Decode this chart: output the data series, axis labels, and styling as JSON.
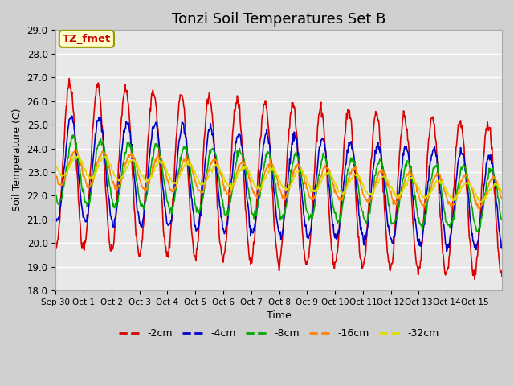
{
  "title": "Tonzi Soil Temperatures Set B",
  "xlabel": "Time",
  "ylabel": "Soil Temperature (C)",
  "ylim": [
    18.0,
    29.0
  ],
  "yticks": [
    18.0,
    19.0,
    20.0,
    21.0,
    22.0,
    23.0,
    24.0,
    25.0,
    26.0,
    27.0,
    28.0,
    29.0
  ],
  "xtick_labels": [
    "Sep 30",
    "Oct 1",
    "Oct 2",
    "Oct 3",
    "Oct 4",
    "Oct 5",
    "Oct 6",
    "Oct 7",
    "Oct 8",
    "Oct 9",
    "Oct 10",
    "Oct 11",
    "Oct 12",
    "Oct 13",
    "Oct 14",
    "Oct 15"
  ],
  "series_colors": [
    "#dd0000",
    "#0000cc",
    "#00aa00",
    "#ff8800",
    "#dddd00"
  ],
  "series_labels": [
    "-2cm",
    "-4cm",
    "-8cm",
    "-16cm",
    "-32cm"
  ],
  "legend_bg": "#ffffcc",
  "legend_border": "#999900",
  "bg_color": "#e8e8e8",
  "grid_color": "#ffffff",
  "title_fontsize": 13,
  "annotation_text": "TZ_fmet"
}
